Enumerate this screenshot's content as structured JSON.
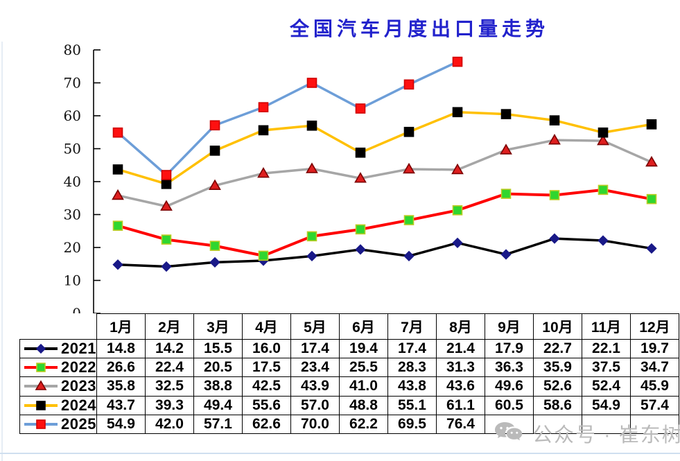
{
  "title": {
    "text": "全国汽车月度出口量走势",
    "color": "#2222CC"
  },
  "watermark": {
    "icon": "wechat-icon",
    "text": "公众号 · 崔东树",
    "color": "#BABABA"
  },
  "chart_data": {
    "type": "line",
    "title": "全国汽车月度出口量走势",
    "categories": [
      "1月",
      "2月",
      "3月",
      "4月",
      "5月",
      "6月",
      "7月",
      "8月",
      "9月",
      "10月",
      "11月",
      "12月"
    ],
    "xlabel": "",
    "ylabel": "",
    "ylim": [
      0,
      80
    ],
    "ytick_step": 10,
    "grid": false,
    "legend_position": "table-left-column",
    "series": [
      {
        "name": "2021",
        "values": [
          14.8,
          14.2,
          15.5,
          16.0,
          17.4,
          19.4,
          17.4,
          21.4,
          17.9,
          22.7,
          22.1,
          19.7
        ],
        "line_color": "#000000",
        "marker": "diamond",
        "marker_fill": "#191988",
        "marker_stroke": "#191988"
      },
      {
        "name": "2022",
        "values": [
          26.6,
          22.4,
          20.5,
          17.5,
          23.4,
          25.5,
          28.3,
          31.3,
          36.3,
          35.9,
          37.5,
          34.7
        ],
        "line_color": "#FE0000",
        "marker": "square",
        "marker_fill": "#2FD62F",
        "marker_stroke": "#BBCC22"
      },
      {
        "name": "2023",
        "values": [
          35.8,
          32.5,
          38.8,
          42.5,
          43.9,
          41.0,
          43.8,
          43.6,
          49.6,
          52.6,
          52.4,
          45.9
        ],
        "line_color": "#A6A6A6",
        "marker": "triangle",
        "marker_fill": "#DE1F1F",
        "marker_stroke": "#7A0000"
      },
      {
        "name": "2024",
        "values": [
          43.7,
          39.3,
          49.4,
          55.6,
          57.0,
          48.8,
          55.1,
          61.1,
          60.5,
          58.6,
          54.9,
          57.4
        ],
        "line_color": "#FFC000",
        "marker": "square",
        "marker_fill": "#000000",
        "marker_stroke": "#000000"
      },
      {
        "name": "2025",
        "values": [
          54.9,
          42.0,
          57.1,
          62.6,
          70.0,
          62.2,
          69.5,
          76.4
        ],
        "line_color": "#6D9ED8",
        "marker": "square",
        "marker_fill": "#FE1010",
        "marker_stroke": "#D00000"
      }
    ]
  }
}
